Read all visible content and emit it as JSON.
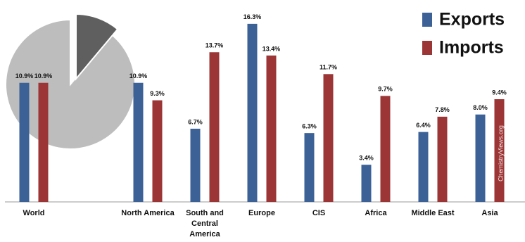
{
  "chart_data": {
    "type": "bar",
    "categories": [
      "World",
      null,
      "North America",
      "South and Central America",
      "Europe",
      "CIS",
      "Africa",
      "Middle East",
      "Asia"
    ],
    "series": [
      {
        "name": "Exports",
        "color": "#3b6196",
        "values": [
          10.9,
          null,
          10.9,
          6.7,
          16.3,
          6.3,
          3.4,
          6.4,
          8.0
        ],
        "value_labels": [
          "10.9%",
          null,
          "10.9%",
          "6.7%",
          "16.3%",
          "6.3%",
          "3.4%",
          "6.4%",
          "8.0%"
        ]
      },
      {
        "name": "Imports",
        "color": "#9c3535",
        "values": [
          10.9,
          null,
          9.3,
          13.7,
          13.4,
          11.7,
          9.7,
          7.8,
          9.4
        ],
        "value_labels": [
          "10.9%",
          null,
          "9.3%",
          "13.7%",
          "13.4%",
          "11.7%",
          "9.7%",
          "7.8%",
          "9.4%"
        ]
      }
    ],
    "ylim": [
      0,
      17
    ],
    "legend": "top-right",
    "watermark": "ChemistryViews.org"
  }
}
